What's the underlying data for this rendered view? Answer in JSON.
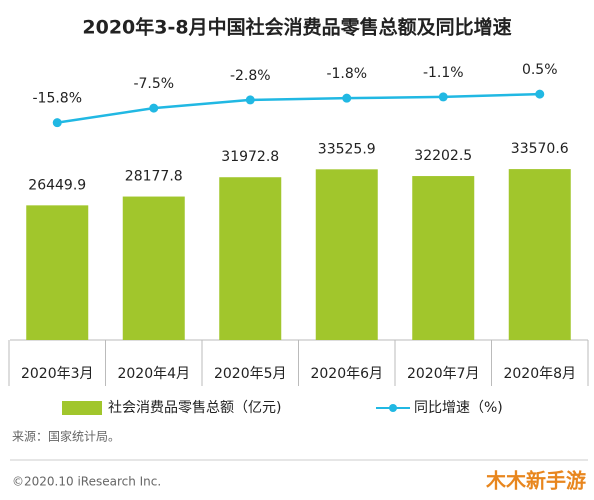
{
  "chart_data": {
    "type": "bar-line",
    "title": "2020年3-8月中国社会消费品零售总额及同比增速",
    "categories": [
      "2020年3月",
      "2020年4月",
      "2020年5月",
      "2020年6月",
      "2020年7月",
      "2020年8月"
    ],
    "series": [
      {
        "name": "社会消费品零售总额（亿元)",
        "type": "bar",
        "color": "#a1c62c",
        "values": [
          26449.9,
          28177.8,
          31972.8,
          33525.9,
          32202.5,
          33570.6
        ]
      },
      {
        "name": "同比增速（%)",
        "type": "line",
        "axis": "y2",
        "color": "#21b8e3",
        "values": [
          -15.8,
          -7.5,
          -2.8,
          -1.8,
          -1.1,
          0.5
        ],
        "value_labels": [
          "-15.8%",
          "-7.5%",
          "-2.8%",
          "-1.8%",
          "-1.1%",
          "0.5%"
        ]
      }
    ],
    "ylim": [
      0,
      55000
    ],
    "y2lim": [
      -140,
      20
    ],
    "source": "来源：国家统计局。",
    "footer": "©2020.10 iResearch Inc.",
    "watermark": "木木新手游"
  }
}
